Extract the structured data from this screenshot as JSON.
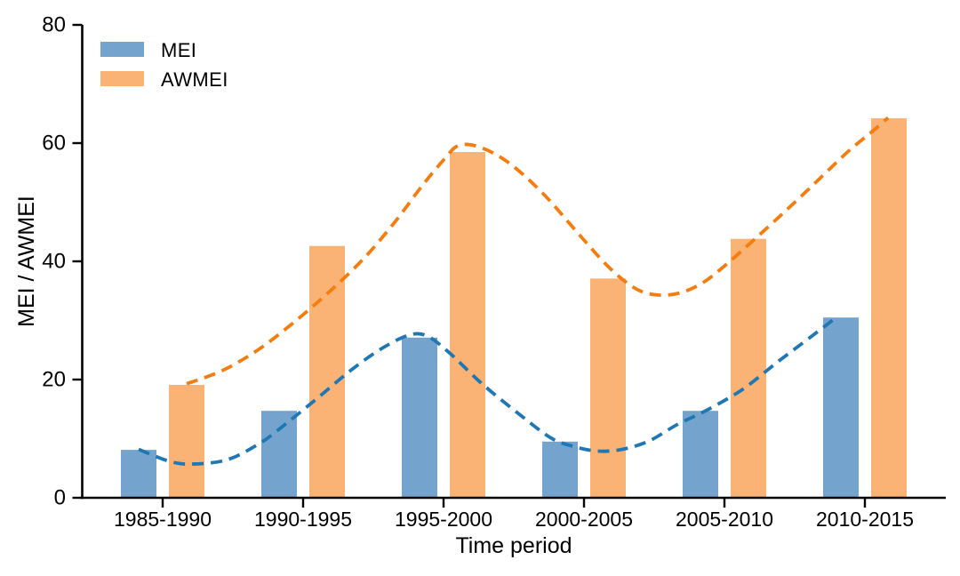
{
  "chart_data": {
    "type": "bar",
    "title": "",
    "xlabel": "Time period",
    "ylabel": "MEI / AWMEI",
    "categories": [
      "1985-1990",
      "1990-1995",
      "1995-2000",
      "2000-2005",
      "2005-2010",
      "2010-2015"
    ],
    "series": [
      {
        "name": "MEI",
        "values": [
          8.1,
          14.7,
          27.1,
          9.5,
          14.7,
          30.5
        ],
        "bar_color": "#74A4CD",
        "line_color": "#1F77B4"
      },
      {
        "name": "AWMEI",
        "values": [
          19.1,
          42.6,
          58.5,
          37.1,
          43.8,
          64.2
        ],
        "bar_color": "#FAB374",
        "line_color": "#F57D0F"
      }
    ],
    "trend_curves": [
      {
        "series": "MEI",
        "style": "dashed",
        "points": [
          [
            -0.171,
            8.2
          ],
          [
            0.044,
            6.2
          ],
          [
            0.203,
            5.7
          ],
          [
            0.456,
            6.4
          ],
          [
            0.677,
            9.0
          ],
          [
            0.829,
            11.6
          ],
          [
            1.089,
            16.6
          ],
          [
            1.342,
            21.6
          ],
          [
            1.563,
            25.3
          ],
          [
            1.753,
            27.5
          ],
          [
            1.88,
            27.4
          ],
          [
            2.038,
            24.6
          ],
          [
            2.278,
            19.2
          ],
          [
            2.557,
            13.8
          ],
          [
            2.766,
            10.1
          ],
          [
            2.924,
            8.7
          ],
          [
            3.095,
            7.9
          ],
          [
            3.272,
            8.2
          ],
          [
            3.462,
            9.6
          ],
          [
            3.665,
            12.4
          ],
          [
            3.873,
            14.8
          ],
          [
            4.127,
            18.3
          ],
          [
            4.38,
            23.0
          ],
          [
            4.614,
            27.2
          ],
          [
            4.791,
            30.4
          ]
        ]
      },
      {
        "series": "AWMEI",
        "style": "dashed",
        "points": [
          [
            0.171,
            19.3
          ],
          [
            0.424,
            21.5
          ],
          [
            0.677,
            25.0
          ],
          [
            0.93,
            29.6
          ],
          [
            1.184,
            34.8
          ],
          [
            1.437,
            40.6
          ],
          [
            1.658,
            46.8
          ],
          [
            1.848,
            52.8
          ],
          [
            2.006,
            57.3
          ],
          [
            2.108,
            59.6
          ],
          [
            2.26,
            59.3
          ],
          [
            2.462,
            56.7
          ],
          [
            2.703,
            51.6
          ],
          [
            2.956,
            44.8
          ],
          [
            3.177,
            39.0
          ],
          [
            3.367,
            35.4
          ],
          [
            3.525,
            34.3
          ],
          [
            3.69,
            34.7
          ],
          [
            3.854,
            36.5
          ],
          [
            4.019,
            39.6
          ],
          [
            4.222,
            43.9
          ],
          [
            4.443,
            48.7
          ],
          [
            4.665,
            53.7
          ],
          [
            4.886,
            58.7
          ],
          [
            5.044,
            61.8
          ],
          [
            5.165,
            64.3
          ]
        ]
      }
    ],
    "legend": {
      "position": "upper-left",
      "entries": [
        "MEI",
        "AWMEI"
      ]
    },
    "ylim": [
      0,
      80
    ],
    "yticks": [
      0,
      20,
      40,
      60,
      80
    ],
    "grid": "off",
    "axis_color": "#000000",
    "background_color": "#FFFFFF"
  }
}
